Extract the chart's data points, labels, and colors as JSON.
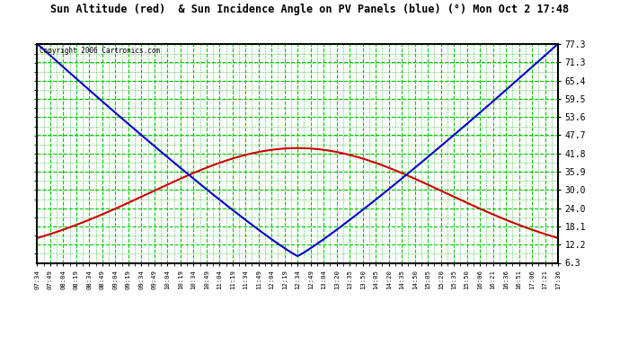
{
  "title": "Sun Altitude (red)  & Sun Incidence Angle on PV Panels (blue) (°) Mon Oct 2 17:48",
  "copyright": "Copyright 2006 Cartronics.com",
  "plot_bg_color": "#ffffff",
  "fig_bg_color": "#ffffff",
  "grid_color_major": "#00cc00",
  "grid_color_minor": "#00aa00",
  "title_color": "#000000",
  "tick_color": "#000000",
  "red_line_color": "#cc0000",
  "blue_line_color": "#0000cc",
  "yticks": [
    6.3,
    12.2,
    18.1,
    24.0,
    30.0,
    35.9,
    41.8,
    47.7,
    53.6,
    59.5,
    65.4,
    71.3,
    77.3
  ],
  "xtick_labels": [
    "07:34",
    "07:49",
    "08:04",
    "08:19",
    "08:34",
    "08:49",
    "09:04",
    "09:19",
    "09:34",
    "09:49",
    "10:04",
    "10:19",
    "10:34",
    "10:49",
    "11:04",
    "11:19",
    "11:34",
    "11:49",
    "12:04",
    "12:19",
    "12:34",
    "12:49",
    "13:04",
    "13:20",
    "13:35",
    "13:50",
    "14:05",
    "14:20",
    "14:35",
    "14:50",
    "15:05",
    "15:20",
    "15:35",
    "15:50",
    "16:06",
    "16:21",
    "16:36",
    "16:51",
    "17:06",
    "17:21",
    "17:36"
  ],
  "ymin": 6.3,
  "ymax": 77.3,
  "red_peak": 43.5,
  "blue_min": 8.5
}
